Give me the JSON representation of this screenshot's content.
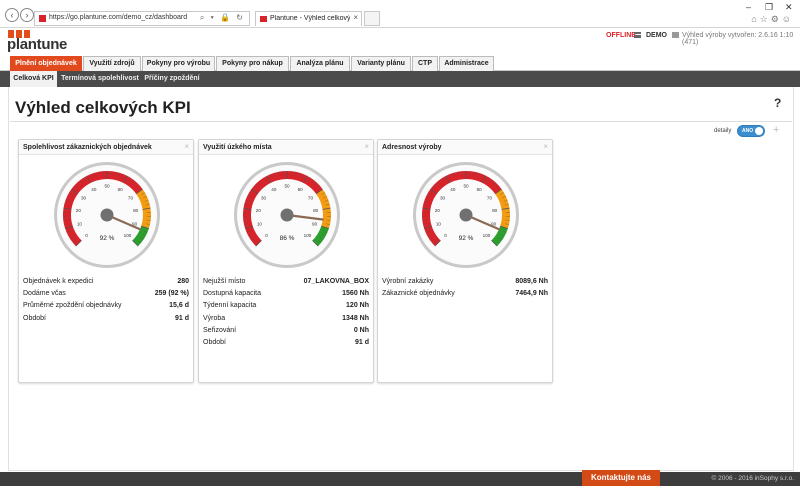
{
  "browser": {
    "url": "https://go.plantune.com/demo_cz/dashboard",
    "tab_title": "Plantune - Výhled celkových..."
  },
  "header": {
    "logo_text": "plantune",
    "offline": "OFFLINE",
    "env": "DEMO",
    "version": "Výhled výroby vytvořen: 2.6.16 1:10 (471)"
  },
  "main_nav": [
    {
      "label": "Plnění objednávek",
      "active": true
    },
    {
      "label": "Využití zdrojů"
    },
    {
      "label": "Pokyny pro výrobu"
    },
    {
      "label": "Pokyny pro nákup"
    },
    {
      "label": "Analýza plánu"
    },
    {
      "label": "Varianty plánu"
    },
    {
      "label": "CTP"
    },
    {
      "label": "Administrace"
    }
  ],
  "sub_nav": [
    {
      "label": "Celková KPI",
      "active": true
    },
    {
      "label": "Termínová spolehlivost"
    },
    {
      "label": "Příčiny zpoždění"
    }
  ],
  "page": {
    "title": "Výhled celkových KPI",
    "help": "?",
    "details_label": "detaily",
    "toggle_label": "ANO"
  },
  "widgets": [
    {
      "title": "Spolehlivost zákaznických objednávek",
      "gauge_value": 92,
      "gauge_label": "92 %",
      "metrics": [
        {
          "label": "Objednávek k expedici",
          "value": "280"
        },
        {
          "label": "Dodáme včas",
          "value": "259 (92 %)"
        },
        {
          "label": "Průměrné zpoždění objednávky",
          "value": "15,6 d"
        },
        {
          "label": "Období",
          "value": "91 d"
        }
      ]
    },
    {
      "title": "Využití úzkého místa",
      "gauge_value": 86,
      "gauge_label": "86 %",
      "metrics": [
        {
          "label": "Nejužší místo",
          "value": "07_LAKOVNA_BOX"
        },
        {
          "label": "Dostupná kapacita",
          "value": "1560 Nh"
        },
        {
          "label": "Týdenní kapacita",
          "value": "120 Nh"
        },
        {
          "label": "Výroba",
          "value": "1348 Nh"
        },
        {
          "label": "Seřizování",
          "value": "0 Nh"
        },
        {
          "label": "Období",
          "value": "91 d"
        }
      ]
    },
    {
      "title": "Adresnost výroby",
      "gauge_value": 92,
      "gauge_label": "92 %",
      "metrics": [
        {
          "label": "Výrobní zakázky",
          "value": "8089,6 Nh"
        },
        {
          "label": "Zákaznické objednávky",
          "value": "7464,9 Nh"
        }
      ]
    }
  ],
  "gauge_ticks": [
    "0",
    "10",
    "20",
    "30",
    "40",
    "50",
    "60",
    "70",
    "80",
    "90",
    "100"
  ],
  "colors": {
    "accent": "#e2491d",
    "gauge_red": "#d8232a",
    "gauge_orange": "#f39c12",
    "gauge_green": "#2ca02c",
    "toggle": "#3b8fd1"
  },
  "footer": {
    "contact": "Kontaktujte nás",
    "copyright": "© 2006 - 2016 inSophy s.r.o."
  }
}
